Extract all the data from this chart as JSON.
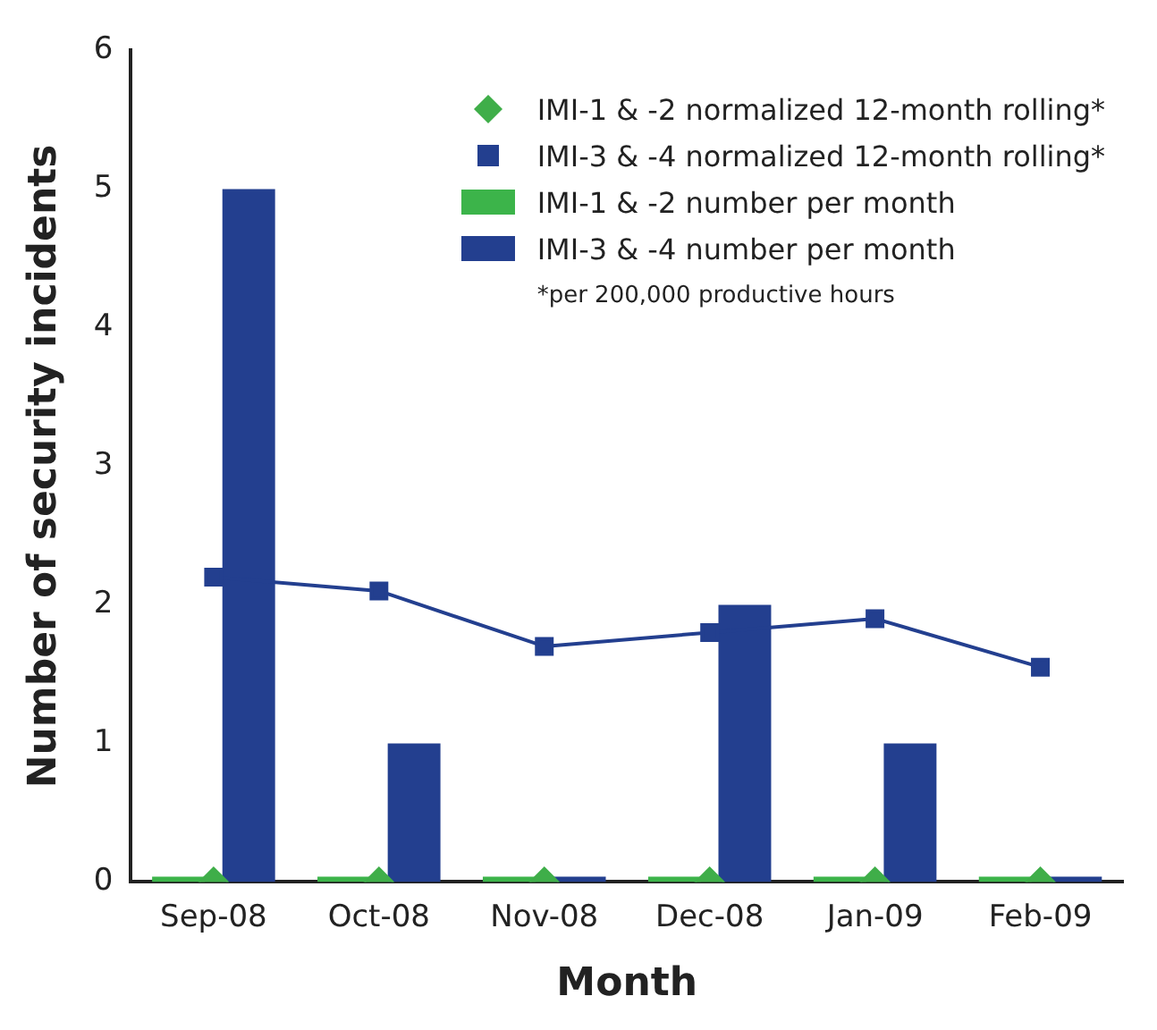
{
  "chart_data": {
    "type": "bar",
    "xlabel": "Month",
    "ylabel": "Number of security incidents",
    "categories": [
      "Sep-08",
      "Oct-08",
      "Nov-08",
      "Dec-08",
      "Jan-09",
      "Feb-09"
    ],
    "series": [
      {
        "name": "IMI-1 & -2 normalized 12-month rolling*",
        "type": "scatter",
        "marker": "diamond",
        "color": "#3fae49",
        "values": [
          0,
          0,
          0,
          0,
          0,
          0
        ]
      },
      {
        "name": "IMI-3 & -4 normalized 12-month rolling*",
        "type": "line",
        "marker": "square",
        "color": "#233f8f",
        "values": [
          2.2,
          2.1,
          1.7,
          1.8,
          1.9,
          1.55
        ]
      },
      {
        "name": "IMI-1 & -2 number per month",
        "color": "#3cb44a",
        "values": [
          0,
          0,
          0,
          0,
          0,
          0
        ]
      },
      {
        "name": "IMI-3 & -4 number per month",
        "color": "#233f8f",
        "values": [
          5,
          1,
          0,
          2,
          1,
          0
        ]
      }
    ],
    "ylim": [
      0,
      6
    ],
    "yticks": [
      0,
      1,
      2,
      3,
      4,
      5,
      6
    ],
    "grid": false,
    "legend": "top right",
    "annotations": [
      "*per 200,000 productive hours"
    ]
  }
}
